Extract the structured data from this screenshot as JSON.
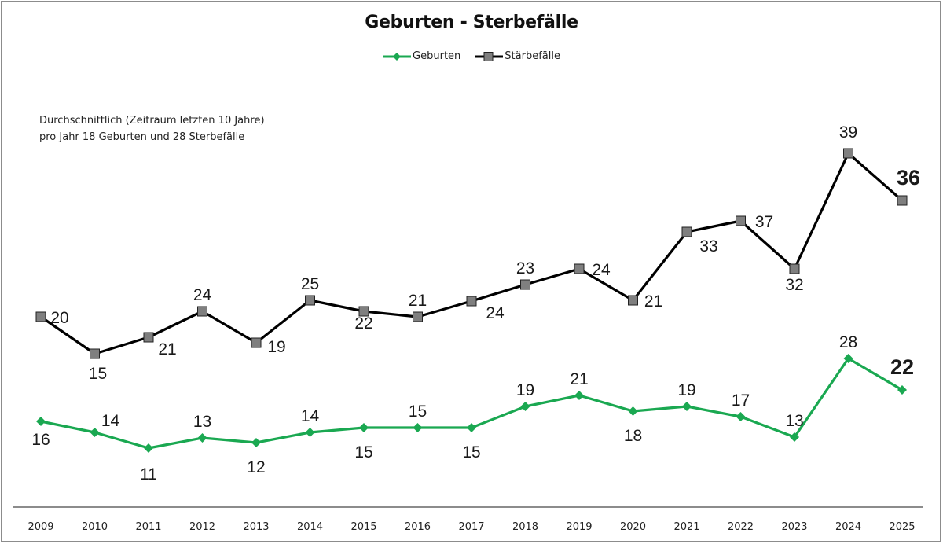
{
  "chart_data": {
    "type": "line",
    "title": "Geburten - Sterbefälle",
    "xlabel": "",
    "ylabel": "",
    "grid": false,
    "legend_position": "top-center",
    "annotation": [
      "Durchschnittlich (Zeitraum letzten 10 Jahre)",
      "pro Jahr 18 Geburten und 28 Sterbefälle"
    ],
    "categories": [
      "2009",
      "2010",
      "2011",
      "2012",
      "2013",
      "2014",
      "2015",
      "2016",
      "2017",
      "2018",
      "2019",
      "2020",
      "2021",
      "2022",
      "2023",
      "2024",
      "2025"
    ],
    "series": [
      {
        "name": "Geburten",
        "color": "#1aa851",
        "marker": "diamond",
        "values": [
          16,
          14,
          11,
          13,
          12,
          14,
          15,
          15,
          15,
          19,
          21,
          18,
          19,
          17,
          13,
          28,
          22
        ],
        "label_labels": [
          "16",
          "14",
          "11",
          "13",
          "12",
          "14",
          "15",
          "15",
          "15",
          "19",
          "21",
          "18",
          "19",
          "17",
          "13",
          "28",
          "22"
        ]
      },
      {
        "name": "Stärbefälle",
        "color": "#000000",
        "marker_fill": "#7f7f7f",
        "marker": "square",
        "values": [
          20,
          15,
          21,
          24,
          19,
          25,
          22,
          21,
          24,
          23,
          24,
          21,
          33,
          37,
          32,
          39,
          36
        ],
        "label_labels": [
          "20",
          "15",
          "21",
          "24",
          "19",
          "25",
          "22",
          "21",
          "24",
          "23",
          "24",
          "21",
          "33",
          "37",
          "32",
          "39",
          "36"
        ]
      }
    ],
    "highlight_last_label": true
  }
}
